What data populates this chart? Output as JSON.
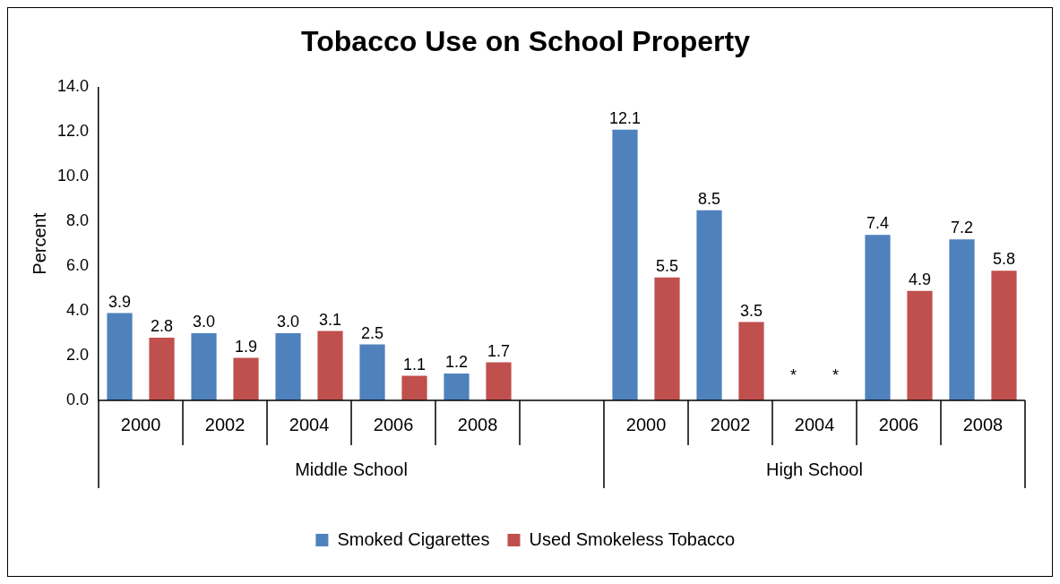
{
  "chart_data": {
    "type": "bar",
    "title": "Tobacco Use on School Property",
    "ylabel": "Percent",
    "categories": [
      "2000",
      "2002",
      "2004",
      "2006",
      "2008",
      null,
      "2000",
      "2002",
      "2004",
      "2006",
      "2008"
    ],
    "annotations": [
      "Middle School",
      "High School"
    ],
    "series": [
      {
        "name": "Smoked Cigarettes",
        "color": "#4f81bd",
        "values": [
          3.9,
          3.0,
          3.0,
          2.5,
          1.2,
          null,
          12.1,
          8.5,
          null,
          7.4,
          7.2
        ],
        "value_labels": [
          "3.9",
          "3.0",
          "3.0",
          "2.5",
          "1.2",
          null,
          "12.1",
          "8.5",
          "*",
          "7.4",
          "7.2"
        ]
      },
      {
        "name": "Used Smokeless Tobacco",
        "color": "#c0504d",
        "values": [
          2.8,
          1.9,
          3.1,
          1.1,
          1.7,
          null,
          5.5,
          3.5,
          null,
          4.9,
          5.8
        ],
        "value_labels": [
          "2.8",
          "1.9",
          "3.1",
          "1.1",
          "1.7",
          null,
          "5.5",
          "3.5",
          "*",
          "4.9",
          "5.8"
        ]
      }
    ],
    "ylim": [
      0,
      14
    ],
    "yticks": [
      {
        "value": 0,
        "label": "0.0"
      },
      {
        "value": 2,
        "label": "2.0"
      },
      {
        "value": 4,
        "label": "4.0"
      },
      {
        "value": 6,
        "label": "6.0"
      },
      {
        "value": 8,
        "label": "8.0"
      },
      {
        "value": 10,
        "label": "10.0"
      },
      {
        "value": 12,
        "label": "12.0"
      },
      {
        "value": 14,
        "label": "14.0"
      }
    ],
    "grid": false,
    "legend": "bottom"
  }
}
